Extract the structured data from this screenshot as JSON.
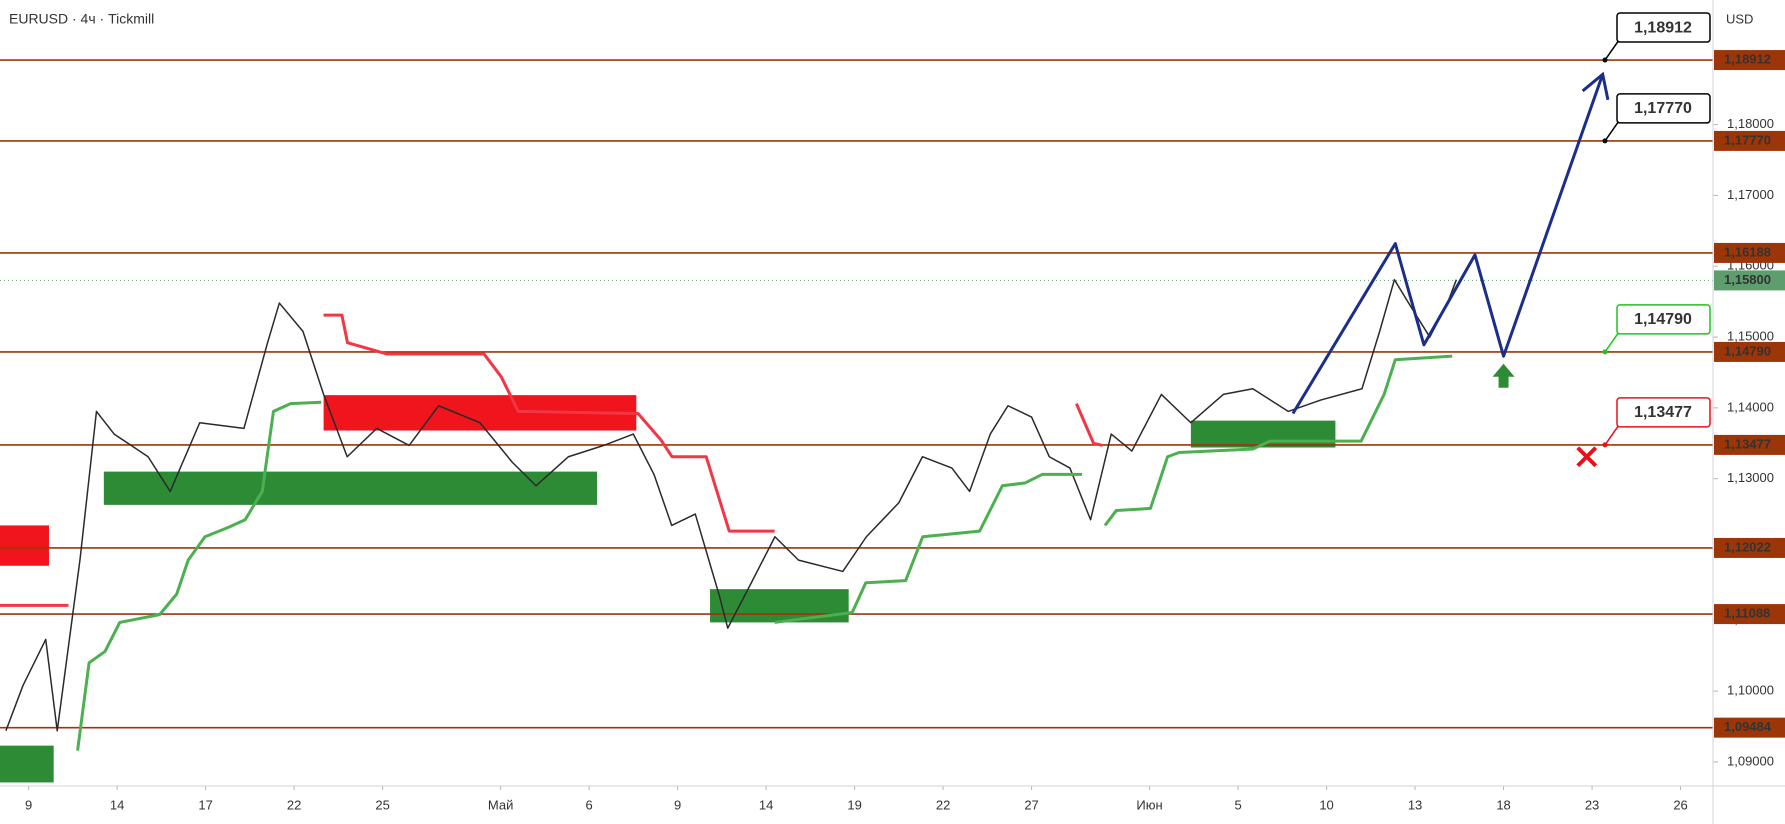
{
  "chart_data": {
    "type": "line",
    "title": "EURUSD · 4ч · Tickmill",
    "y_label": "USD",
    "xlim": [
      -0.97,
      57.1
    ],
    "ylim": [
      1.0866,
      1.1976
    ],
    "xticks": [
      {
        "value": 0,
        "label": "9"
      },
      {
        "value": 3,
        "label": "14"
      },
      {
        "value": 6,
        "label": "17"
      },
      {
        "value": 9,
        "label": "22"
      },
      {
        "value": 12,
        "label": "25"
      },
      {
        "value": 16,
        "label": "Май"
      },
      {
        "value": 19,
        "label": "6"
      },
      {
        "value": 22,
        "label": "9"
      },
      {
        "value": 25,
        "label": "14"
      },
      {
        "value": 28,
        "label": "19"
      },
      {
        "value": 31,
        "label": "22"
      },
      {
        "value": 34,
        "label": "27"
      },
      {
        "value": 38,
        "label": "Июн"
      },
      {
        "value": 41,
        "label": "5"
      },
      {
        "value": 44,
        "label": "10"
      },
      {
        "value": 47,
        "label": "13"
      },
      {
        "value": 50,
        "label": "18"
      },
      {
        "value": 53,
        "label": "23"
      },
      {
        "value": 56,
        "label": "26"
      }
    ],
    "yticks": [
      {
        "value": 1.09,
        "label": "1,09000"
      },
      {
        "value": 1.1,
        "label": "1,10000"
      },
      {
        "value": 1.11,
        "label": "1,11000"
      },
      {
        "value": 1.12,
        "label": "1,12000"
      },
      {
        "value": 1.13,
        "label": "1,13000"
      },
      {
        "value": 1.14,
        "label": "1,14000"
      },
      {
        "value": 1.15,
        "label": "1,15000"
      },
      {
        "value": 1.16,
        "label": "1,16000"
      },
      {
        "value": 1.17,
        "label": "1,17000"
      },
      {
        "value": 1.18,
        "label": "1,18000"
      }
    ],
    "levels": [
      {
        "value": 1.18912,
        "label": "1,18912",
        "color": "#9c3608",
        "callout": true,
        "callout_color": "#000000"
      },
      {
        "value": 1.1777,
        "label": "1,17770",
        "color": "#9c3608",
        "callout": true,
        "callout_color": "#000000"
      },
      {
        "value": 1.16188,
        "label": "1,16188",
        "color": "#9c3608",
        "callout": false
      },
      {
        "value": 1.1479,
        "label": "1,14790",
        "color": "#9c3608",
        "callout": true,
        "callout_color": "#22c322"
      },
      {
        "value": 1.13477,
        "label": "1,13477",
        "color": "#9c3608",
        "callout": true,
        "callout_color": "#e8101a"
      },
      {
        "value": 1.12022,
        "label": "1,12022",
        "color": "#9c3608",
        "callout": false
      },
      {
        "value": 1.11088,
        "label": "1,11088",
        "color": "#9c3608",
        "callout": false
      },
      {
        "value": 1.09484,
        "label": "1,09484",
        "color": "#9c3608",
        "callout": false
      }
    ],
    "last_price": {
      "value": 1.158,
      "label": "1,15800",
      "color": "#5e9e6e"
    },
    "zones": [
      {
        "color": "#f0141c",
        "x": [
          -0.97,
          0.69
        ],
        "y": [
          1.1177,
          1.1234
        ]
      },
      {
        "color": "#2e8b35",
        "x": [
          -0.97,
          0.85
        ],
        "y": [
          1.0871,
          1.0923
        ]
      },
      {
        "color": "#2e8b35",
        "x": [
          2.55,
          19.27
        ],
        "y": [
          1.1263,
          1.131
        ]
      },
      {
        "color": "#f0141c",
        "x": [
          10.0,
          20.6
        ],
        "y": [
          1.1368,
          1.1418
        ]
      },
      {
        "color": "#2e8b35",
        "x": [
          23.1,
          27.8
        ],
        "y": [
          1.1097,
          1.1144
        ]
      },
      {
        "color": "#2e8b35",
        "x": [
          39.4,
          44.3
        ],
        "y": [
          1.1344,
          1.1382
        ]
      }
    ],
    "series": [
      {
        "color": "#2a2a2a",
        "width": 1.5,
        "x": [
          -0.77,
          -0.19,
          0.58,
          0.97,
          1.74,
          2.3,
          2.9,
          4.05,
          4.8,
          5.8,
          7.3,
          8.1,
          8.5,
          9.3,
          10.0,
          10.8,
          11.8,
          12.9,
          13.9,
          15.3,
          16.4,
          17.2,
          18.3,
          19.5,
          20.5,
          21.2,
          21.8,
          22.6,
          23.4,
          23.7,
          24.5,
          25.3,
          26.1,
          27.6,
          28.4,
          29.5,
          30.3,
          31.3,
          31.9,
          32.6,
          33.2,
          34.0,
          34.6,
          35.3,
          36.0,
          36.7,
          37.4,
          38.4,
          39.4,
          40.5,
          41.5,
          42.7,
          43.8,
          45.2,
          45.8,
          46.3,
          46.9,
          47.5,
          48.1,
          48.4
        ],
        "values": [
          1.0944,
          1.1008,
          1.1073,
          1.0944,
          1.1185,
          1.1395,
          1.1363,
          1.1331,
          1.1282,
          1.1379,
          1.1371,
          1.1492,
          1.1548,
          1.1508,
          1.1419,
          1.1331,
          1.1371,
          1.1347,
          1.1403,
          1.1379,
          1.1323,
          1.129,
          1.1331,
          1.1347,
          1.1363,
          1.1306,
          1.1234,
          1.125,
          1.1137,
          1.1089,
          1.1153,
          1.1218,
          1.1185,
          1.1169,
          1.1218,
          1.1266,
          1.1331,
          1.1315,
          1.1282,
          1.1363,
          1.1403,
          1.1387,
          1.1331,
          1.1315,
          1.1242,
          1.1363,
          1.1339,
          1.1419,
          1.1379,
          1.1419,
          1.1427,
          1.1395,
          1.1411,
          1.1427,
          1.1508,
          1.1581,
          1.154,
          1.15,
          1.1548,
          1.1581
        ]
      },
      {
        "color": "#f23645",
        "width": 3,
        "x": [
          -0.97,
          1.35,
          null,
          10.0,
          10.62,
          10.81,
          12.16,
          15.44,
          16.02,
          16.6,
          20.66,
          21.43,
          21.81,
          22.97,
          23.75,
          25.29,
          null,
          35.52,
          36.1,
          36.41
        ],
        "values": [
          1.1121,
          1.1121,
          null,
          1.1531,
          1.1531,
          1.1492,
          1.1476,
          1.1476,
          1.1444,
          1.1395,
          1.1392,
          1.1355,
          1.1331,
          1.1331,
          1.1226,
          1.1226,
          null,
          1.1406,
          1.135,
          1.1347
        ]
      },
      {
        "color": "#4caf50",
        "width": 3,
        "x": [
          1.66,
          2.05,
          2.59,
          3.09,
          4.44,
          5.02,
          5.41,
          5.98,
          6.76,
          7.34,
          7.92,
          8.3,
          8.88,
          9.92,
          null,
          25.29,
          27.92,
          28.38,
          29.73,
          30.31,
          32.24,
          33.01,
          33.78,
          34.36,
          35.71,
          null,
          36.49,
          36.87,
          38.03,
          38.61,
          39.0,
          41.51,
          42.08,
          45.17,
          45.95,
          46.33,
          48.26
        ],
        "values": [
          1.0916,
          1.104,
          1.1056,
          1.1097,
          1.1108,
          1.1137,
          1.1185,
          1.1218,
          1.1231,
          1.1242,
          1.1282,
          1.1395,
          1.1406,
          1.1408,
          null,
          1.1097,
          1.1111,
          1.1153,
          1.1156,
          1.1218,
          1.1226,
          1.129,
          1.1294,
          1.1306,
          1.1306,
          null,
          1.1234,
          1.1255,
          1.1258,
          1.1331,
          1.1337,
          1.1342,
          1.1353,
          1.1353,
          1.1419,
          1.1468,
          1.1473
        ]
      },
      {
        "color": "#1a2e8a",
        "width": 3,
        "arrow": true,
        "x": [
          42.86,
          46.33,
          47.3,
          49.03,
          50.0,
          53.36
        ],
        "values": [
          1.1392,
          1.1632,
          1.1489,
          1.1616,
          1.1473,
          1.1871
        ]
      }
    ],
    "markers": [
      {
        "shape": "arrow-up",
        "x": 50.0,
        "y": 1.1444,
        "color": "#2e8b35"
      },
      {
        "shape": "cross",
        "x": 52.82,
        "y": 1.1331,
        "color": "#e8101a"
      }
    ]
  }
}
